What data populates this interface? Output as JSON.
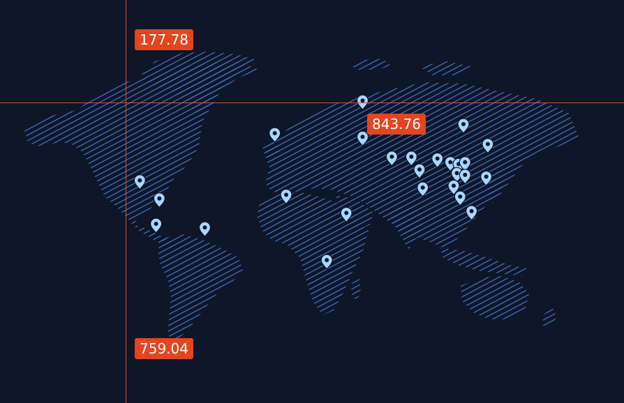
{
  "map": {
    "colors": {
      "background": "#0e1627",
      "land_stroke": "#3f6fc4",
      "crosshair": "#e04a2f",
      "tag_bg": "#e4451f",
      "marker_fill": "#a8d6ff",
      "marker_hole": "#0e1627"
    },
    "crosshair": {
      "top_label": "177.78",
      "bottom_label": "759.04",
      "right_label": "843.76"
    },
    "markers": [
      {
        "name": "central-america",
        "lon": -87,
        "lat": 14
      },
      {
        "name": "colombia",
        "lon": -75,
        "lat": 4
      },
      {
        "name": "peru",
        "lon": -77,
        "lat": -10
      },
      {
        "name": "brazil",
        "lon": -47,
        "lat": -12
      },
      {
        "name": "spain",
        "lon": -4,
        "lat": 40
      },
      {
        "name": "west-africa",
        "lon": 3,
        "lat": 6
      },
      {
        "name": "russia-west",
        "lon": 50,
        "lat": 58
      },
      {
        "name": "caspian",
        "lon": 50,
        "lat": 38
      },
      {
        "name": "east-africa",
        "lon": 40,
        "lat": -4
      },
      {
        "name": "south-africa",
        "lon": 28,
        "lat": -30
      },
      {
        "name": "pakistan",
        "lon": 68,
        "lat": 27
      },
      {
        "name": "north-india",
        "lon": 80,
        "lat": 27
      },
      {
        "name": "central-india",
        "lon": 85,
        "lat": 20
      },
      {
        "name": "south-india",
        "lon": 87,
        "lat": 10
      },
      {
        "name": "nepal",
        "lon": 96,
        "lat": 26
      },
      {
        "name": "china-sw",
        "lon": 104,
        "lat": 24
      },
      {
        "name": "china-s",
        "lon": 109,
        "lat": 23
      },
      {
        "name": "china-se",
        "lon": 113,
        "lat": 24
      },
      {
        "name": "vietnam",
        "lon": 108,
        "lat": 18
      },
      {
        "name": "south-china",
        "lon": 113,
        "lat": 17
      },
      {
        "name": "indochina",
        "lon": 106,
        "lat": 11
      },
      {
        "name": "malaysia",
        "lon": 110,
        "lat": 5
      },
      {
        "name": "indonesia",
        "lon": 117,
        "lat": -3
      },
      {
        "name": "north-china",
        "lon": 112,
        "lat": 45
      },
      {
        "name": "korea-japan",
        "lon": 127,
        "lat": 34
      },
      {
        "name": "philippines",
        "lon": 126,
        "lat": 16
      }
    ]
  }
}
